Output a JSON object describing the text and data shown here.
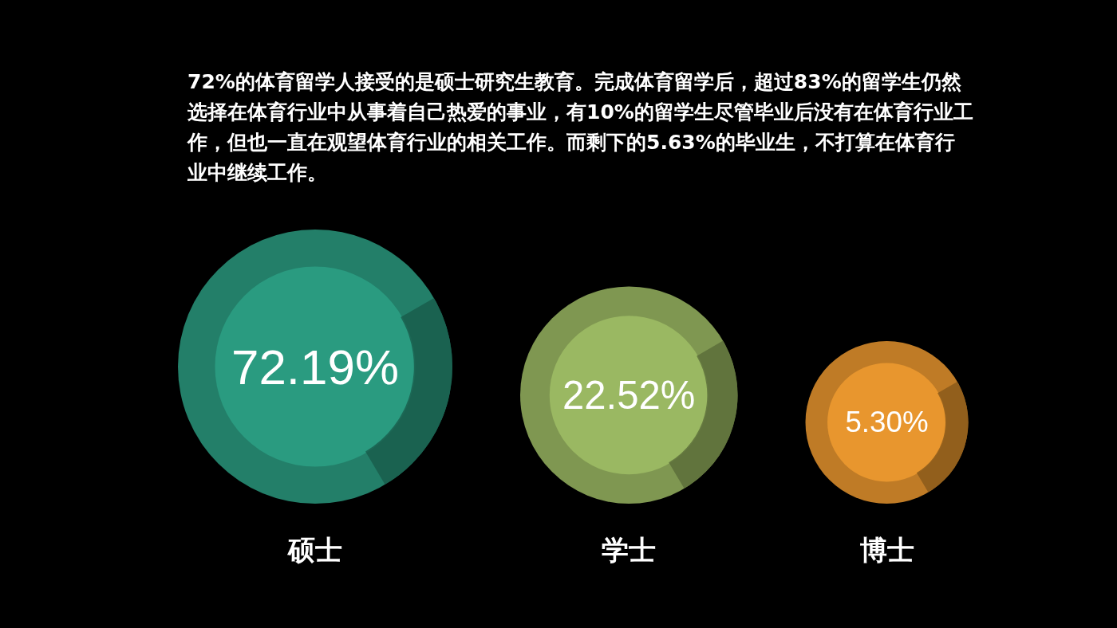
{
  "chart_data": {
    "type": "other",
    "title": "72%的体育留学人接受的是硕士研究生教育。完成体育留学后，超过83%的留学生仍然选择在体育行业中从事着自己热爱的事业，有10%的留学生尽管毕业后没有在体育行业工作，但也一直在观望体育行业的相关工作。而剩下的5.63%的毕业生，不打算在体育行业中继续工作。",
    "categories": [
      "硕士",
      "学士",
      "博士"
    ],
    "values": [
      72.19,
      22.52,
      5.3
    ],
    "value_labels": [
      "72.19%",
      "22.52%",
      "5.30%"
    ],
    "colors": [
      "#2a9b80",
      "#9ab862",
      "#e8962e"
    ]
  }
}
